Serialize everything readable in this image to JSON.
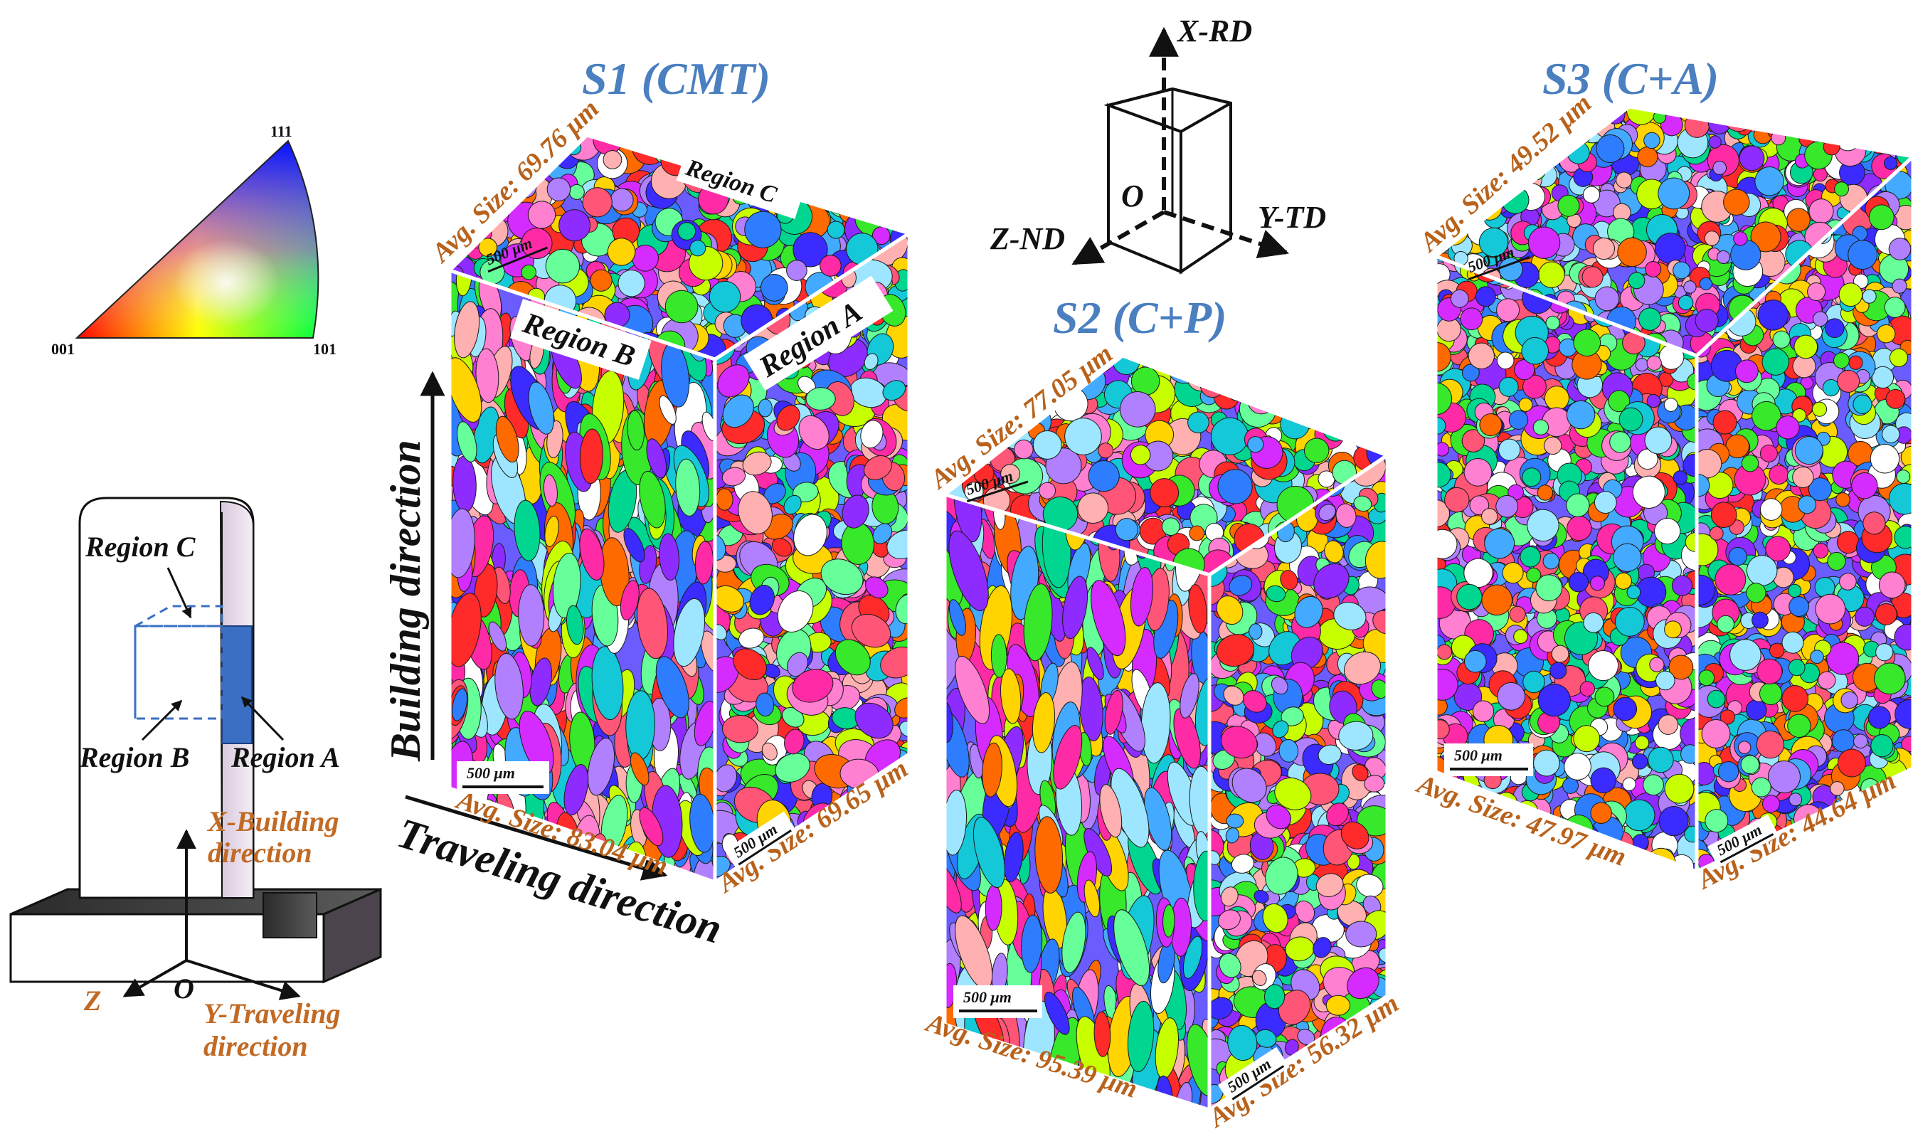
{
  "colors": {
    "title": "#4a7fc0",
    "avg_label": "#b8621c",
    "orange_label": "#c26a24",
    "region_a_fill": "#3a6fc4"
  },
  "ipf_key": {
    "corner_111": "111",
    "corner_001": "001",
    "corner_101": "101"
  },
  "schematic": {
    "region_c": "Region C",
    "region_b": "Region B",
    "region_a": "Region A",
    "x_axis": "X-Building",
    "x_axis_2": "direction",
    "y_axis": "Y-Traveling",
    "y_axis_2": "direction",
    "z_axis": "Z",
    "origin": "O"
  },
  "directions": {
    "building": "Building direction",
    "traveling": "Traveling direction"
  },
  "orient_triad": {
    "x": "X-RD",
    "y": "Y-TD",
    "z": "Z-ND",
    "origin": "O"
  },
  "samples": [
    {
      "title": "S1 (CMT)",
      "avg_top": "Avg. Size: 69.76 μm",
      "avg_front": "Avg. Size: 83.04 μm",
      "avg_side": "Avg. Size: 69.65 μm",
      "scale": "500 μm",
      "label_top": "Region C",
      "label_front": "Region B",
      "label_side": "Region A"
    },
    {
      "title": "S2 (C+P)",
      "avg_top": "Avg. Size: 77.05 μm",
      "avg_front": "Avg. Size: 95.39 μm",
      "avg_side": "Avg. Size: 56.32 μm",
      "scale": "500 μm"
    },
    {
      "title": "S3 (C+A)",
      "avg_top": "Avg. Size: 49.52 μm",
      "avg_front": "Avg. Size: 47.97 μm",
      "avg_side": "Avg. Size: 44.64 μm",
      "scale": "500 μm"
    }
  ]
}
